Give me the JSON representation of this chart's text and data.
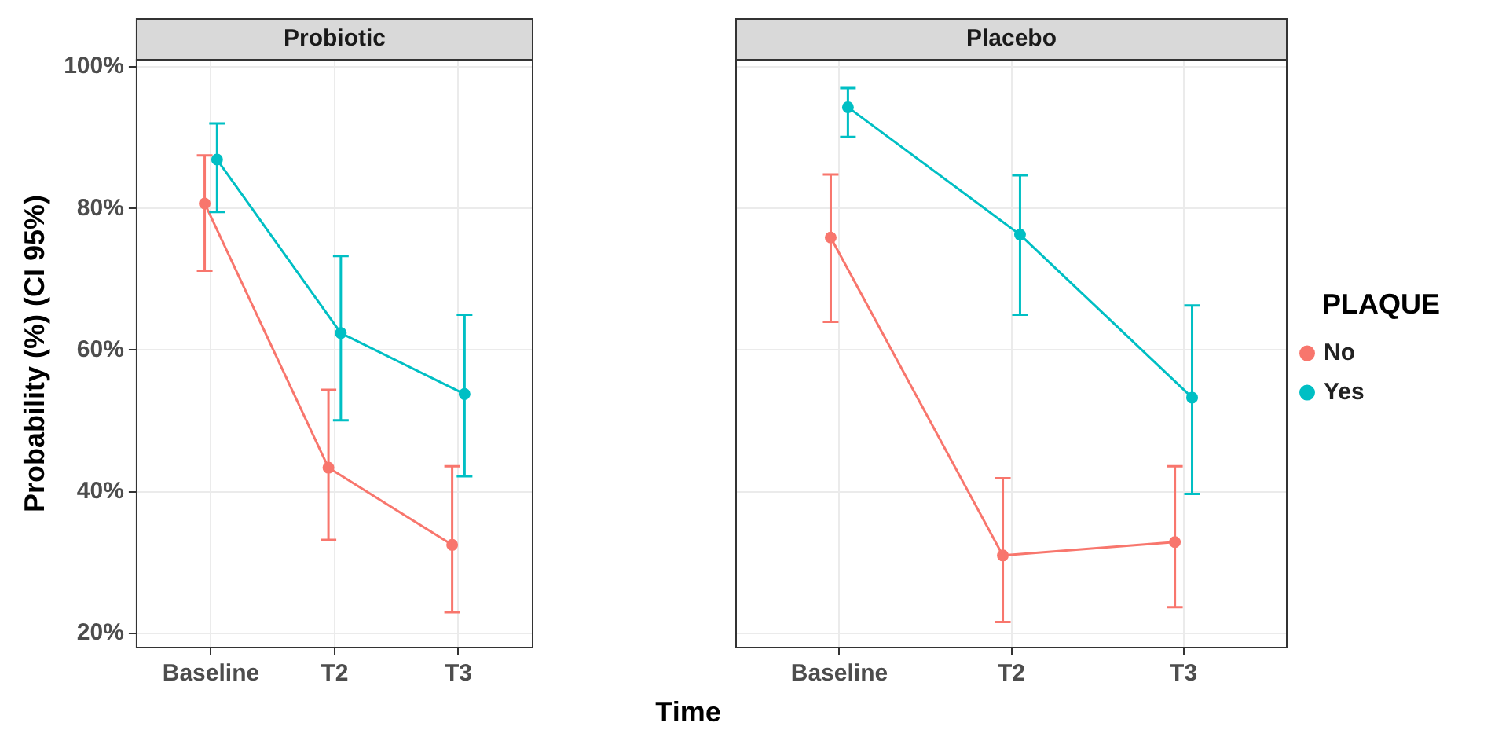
{
  "chart_data": [
    {
      "type": "line",
      "title": "Probiotic",
      "xlabel": "Time",
      "ylabel": "Probability (%) (CI 95%)",
      "categories": [
        "Baseline",
        "T2",
        "T3"
      ],
      "ylim": [
        18,
        101
      ],
      "yticks": [
        {
          "value": 20,
          "label": "20%"
        },
        {
          "value": 40,
          "label": "40%"
        },
        {
          "value": 60,
          "label": "60%"
        },
        {
          "value": 80,
          "label": "80%"
        },
        {
          "value": 100,
          "label": "100%"
        }
      ],
      "grid": true,
      "marker": "circle",
      "legend": false,
      "series": [
        {
          "color": "#f8766d",
          "values": [
            80.7,
            43.4,
            32.5
          ],
          "errors": [
            [
              71.2,
              87.5
            ],
            [
              33.2,
              54.4
            ],
            [
              23,
              43.6
            ]
          ]
        },
        {
          "color": "#00bfc4",
          "values": [
            86.9,
            62.4,
            53.8
          ],
          "errors": [
            [
              79.5,
              92
            ],
            [
              50.1,
              73.3
            ],
            [
              42.2,
              65
            ]
          ]
        }
      ]
    },
    {
      "type": "line",
      "title": "Placebo",
      "categories": [
        "Baseline",
        "T2",
        "T3"
      ],
      "ylim": [
        18,
        101
      ],
      "yticks": [
        20,
        40,
        60,
        80,
        100
      ],
      "grid": true,
      "marker": "circle",
      "legend": "right",
      "legend_title": "PLAQUE",
      "tick_labels": "x",
      "series": [
        {
          "name": "No",
          "color": "#f8766d",
          "values": [
            75.9,
            31,
            32.9
          ],
          "errors": [
            [
              64,
              84.8
            ],
            [
              21.6,
              41.9
            ],
            [
              23.7,
              43.6
            ]
          ]
        },
        {
          "name": "Yes",
          "color": "#00bfc4",
          "values": [
            94.3,
            76.3,
            53.3
          ],
          "errors": [
            [
              90.1,
              97
            ],
            [
              65,
              84.7
            ],
            [
              39.7,
              66.3
            ]
          ]
        }
      ]
    }
  ]
}
